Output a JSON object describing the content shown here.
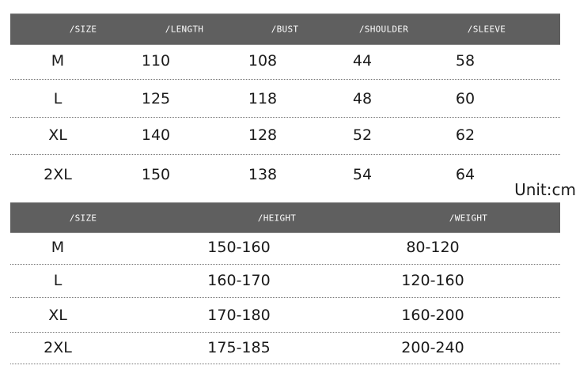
{
  "table1": {
    "headers": [
      "/SIZE",
      "/LENGTH",
      "/BUST",
      "/SHOULDER",
      "/SLEEVE"
    ],
    "rows": [
      [
        "M",
        "110",
        "108",
        "44",
        "58"
      ],
      [
        "L",
        "125",
        "118",
        "48",
        "60"
      ],
      [
        "XL",
        "140",
        "128",
        "52",
        "62"
      ],
      [
        "2XL",
        "150",
        "138",
        "54",
        "64"
      ]
    ]
  },
  "unit_label": "Unit:cm",
  "table2": {
    "headers": [
      "/SIZE",
      "/HEIGHT",
      "/WEIGHT"
    ],
    "rows": [
      [
        "M",
        "150-160",
        "80-120"
      ],
      [
        "L",
        "160-170",
        "120-160"
      ],
      [
        "XL",
        "170-180",
        "160-200"
      ],
      [
        "2XL",
        "175-185",
        "200-240"
      ]
    ]
  },
  "colors": {
    "header_bg": "#5f5f5f",
    "header_text": "#ffffff"
  }
}
